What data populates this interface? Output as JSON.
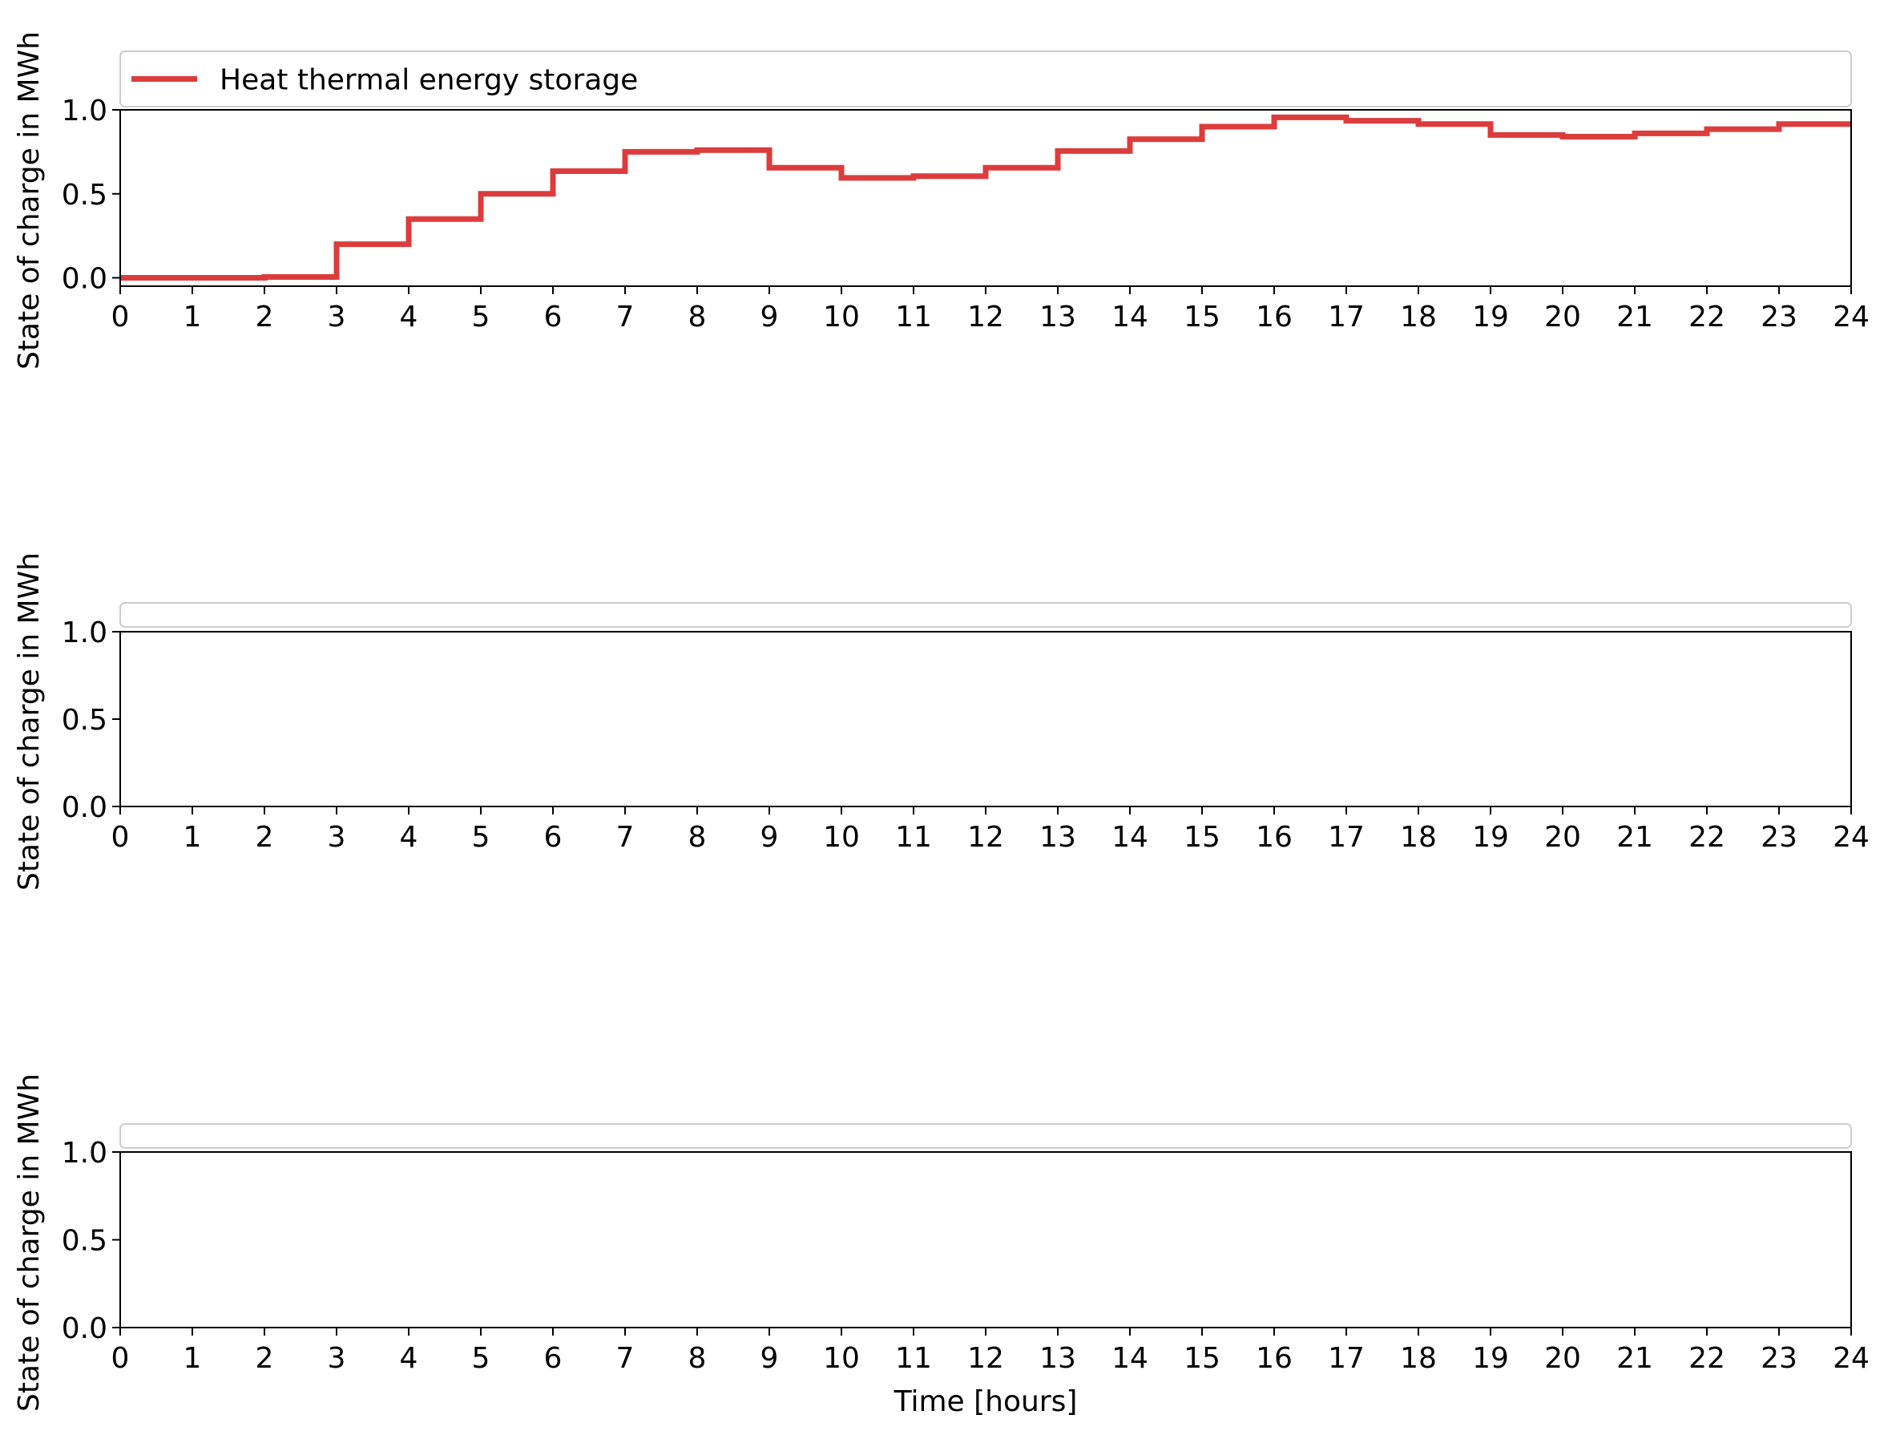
{
  "colors": {
    "series": "#dc3c3c",
    "axis": "#000000",
    "legend_border": "#cccccc",
    "background": "#ffffff"
  },
  "chart_data": [
    {
      "type": "line",
      "step": "post",
      "ylabel": "State of charge in MWh",
      "xlabel": "",
      "xlim": [
        0,
        24
      ],
      "ylim": [
        -0.05,
        1.0
      ],
      "xticks": [
        "0",
        "1",
        "2",
        "3",
        "4",
        "5",
        "6",
        "7",
        "8",
        "9",
        "10",
        "11",
        "12",
        "13",
        "14",
        "15",
        "16",
        "17",
        "18",
        "19",
        "20",
        "21",
        "22",
        "23",
        "24"
      ],
      "yticks": [
        "0.0",
        "0.5",
        "1.0"
      ],
      "legend_location": "top",
      "grid": false,
      "series": [
        {
          "name": "Heat thermal energy storage",
          "x": [
            0,
            1,
            2,
            3,
            4,
            5,
            6,
            7,
            8,
            9,
            10,
            11,
            12,
            13,
            14,
            15,
            16,
            17,
            18,
            19,
            20,
            21,
            22,
            23,
            24
          ],
          "y": [
            0.0,
            0.0,
            0.005,
            0.2,
            0.35,
            0.5,
            0.635,
            0.75,
            0.76,
            0.655,
            0.595,
            0.605,
            0.655,
            0.755,
            0.825,
            0.9,
            0.955,
            0.935,
            0.915,
            0.85,
            0.84,
            0.86,
            0.885,
            0.915,
            0.915
          ]
        }
      ]
    },
    {
      "type": "line",
      "ylabel": "State of charge in MWh",
      "xlabel": "",
      "xlim": [
        0,
        24
      ],
      "ylim": [
        0.0,
        1.0
      ],
      "xticks": [
        "0",
        "1",
        "2",
        "3",
        "4",
        "5",
        "6",
        "7",
        "8",
        "9",
        "10",
        "11",
        "12",
        "13",
        "14",
        "15",
        "16",
        "17",
        "18",
        "19",
        "20",
        "21",
        "22",
        "23",
        "24"
      ],
      "yticks": [
        "0.0",
        "0.5",
        "1.0"
      ],
      "legend_location": "top",
      "grid": false,
      "series": []
    },
    {
      "type": "line",
      "ylabel": "State of charge in MWh",
      "xlabel": "Time [hours]",
      "xlim": [
        0,
        24
      ],
      "ylim": [
        0.0,
        1.0
      ],
      "xticks": [
        "0",
        "1",
        "2",
        "3",
        "4",
        "5",
        "6",
        "7",
        "8",
        "9",
        "10",
        "11",
        "12",
        "13",
        "14",
        "15",
        "16",
        "17",
        "18",
        "19",
        "20",
        "21",
        "22",
        "23",
        "24"
      ],
      "yticks": [
        "0.0",
        "0.5",
        "1.0"
      ],
      "legend_location": "top",
      "grid": false,
      "series": []
    }
  ]
}
